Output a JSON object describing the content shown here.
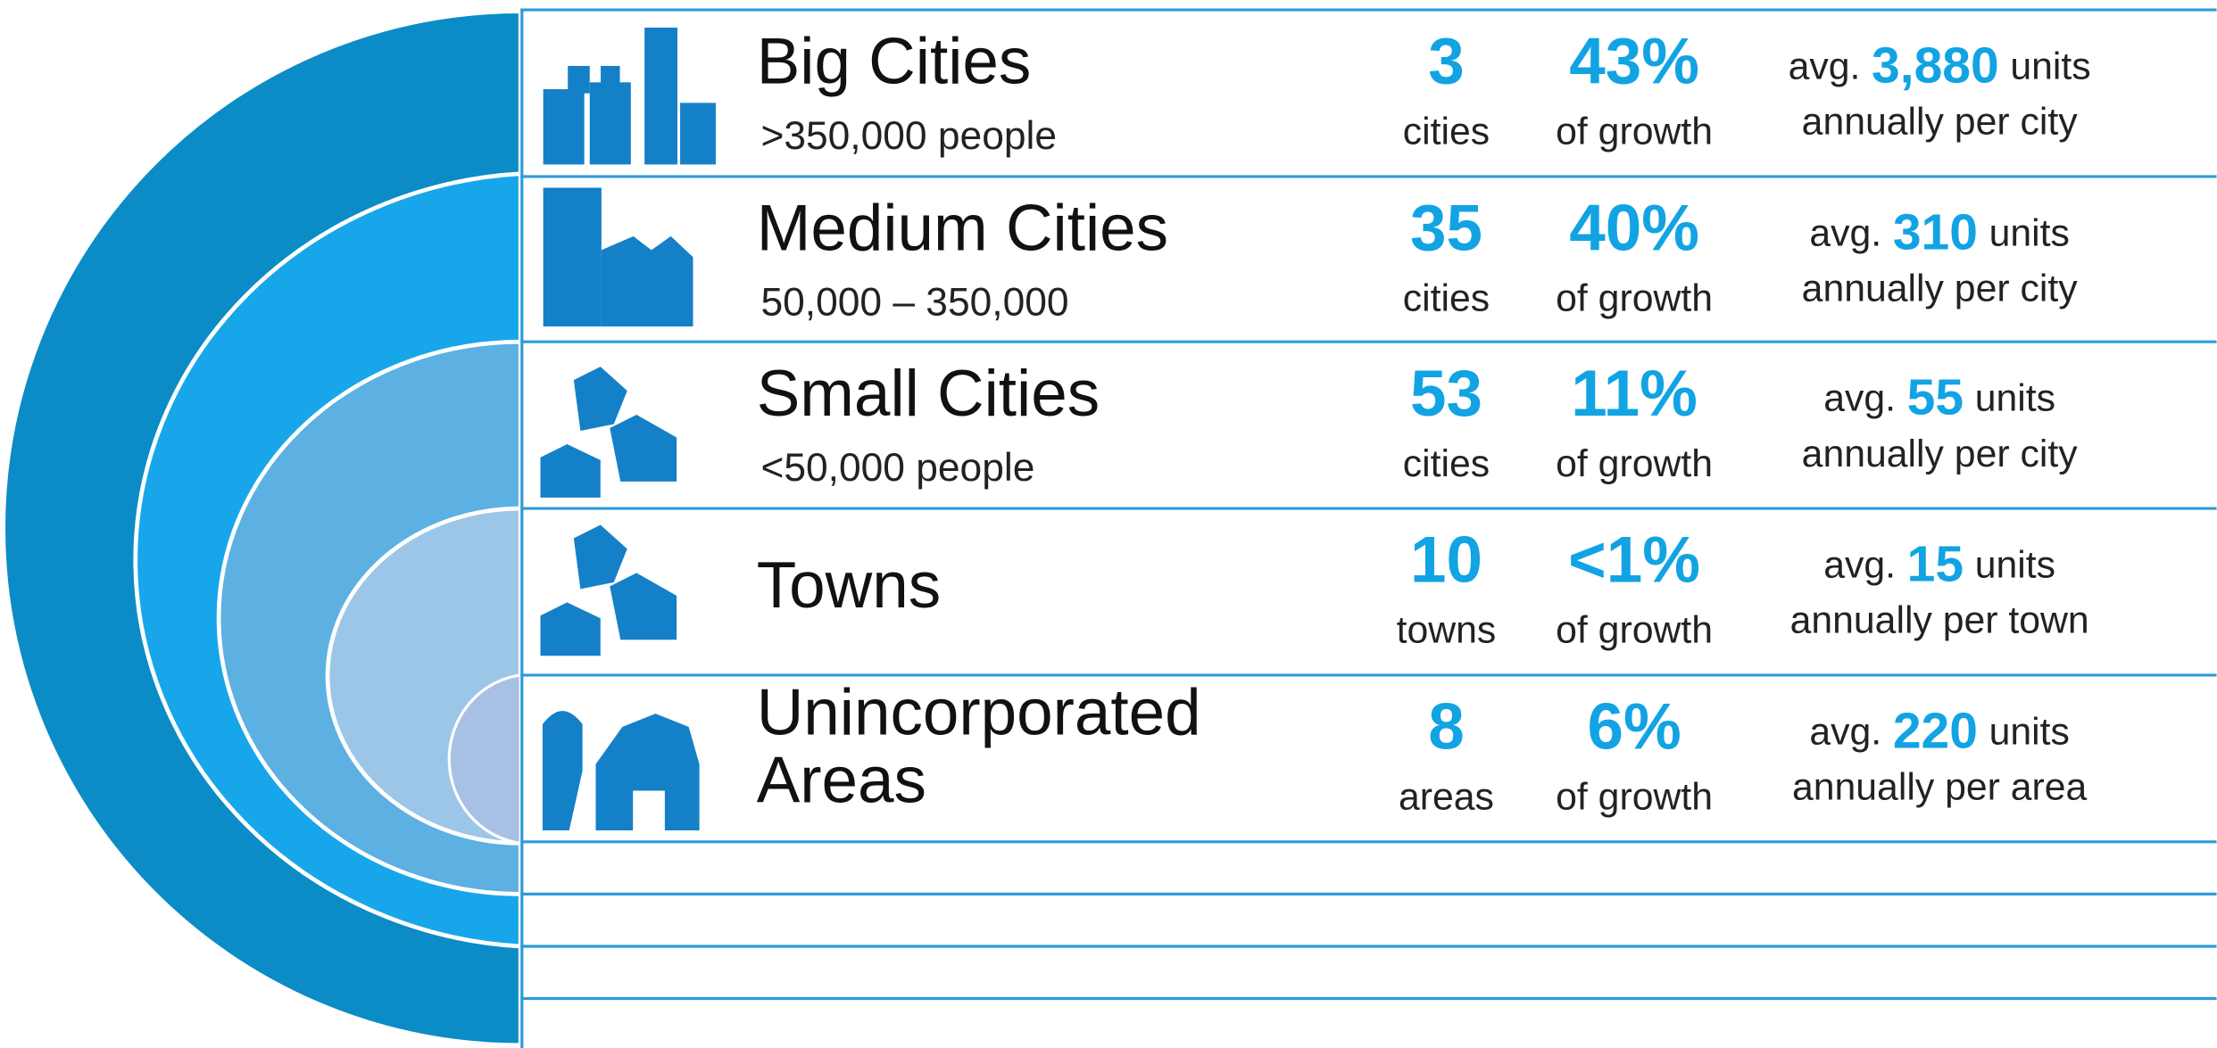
{
  "rows": [
    {
      "title_lines": [
        "Big Cities"
      ],
      "subtitle": ">350,000 people",
      "count": "3",
      "count_label": "cities",
      "percent": "43%",
      "percent_label": "of growth",
      "avg_prefix": "avg.",
      "avg_value": "3,880",
      "avg_unit": "units",
      "avg_suffix": "annually per city"
    },
    {
      "title_lines": [
        "Medium Cities"
      ],
      "subtitle": "50,000 – 350,000",
      "count": "35",
      "count_label": "cities",
      "percent": "40%",
      "percent_label": "of growth",
      "avg_prefix": "avg.",
      "avg_value": "310",
      "avg_unit": "units",
      "avg_suffix": "annually per city"
    },
    {
      "title_lines": [
        "Small Cities"
      ],
      "subtitle": "<50,000 people",
      "count": "53",
      "count_label": "cities",
      "percent": "11%",
      "percent_label": "of growth",
      "avg_prefix": "avg.",
      "avg_value": "55",
      "avg_unit": "units",
      "avg_suffix": "annually per city"
    },
    {
      "title_lines": [
        "Towns"
      ],
      "count": "10",
      "count_label": "towns",
      "percent": "<1%",
      "percent_label": "of growth",
      "avg_prefix": "avg.",
      "avg_value": "15",
      "avg_unit": "units",
      "avg_suffix": "annually per town"
    },
    {
      "title_lines": [
        "Unincorporated",
        "Areas"
      ],
      "count": "8",
      "count_label": "areas",
      "percent": "6%",
      "percent_label": "of growth",
      "avg_prefix": "avg.",
      "avg_value": "220",
      "avg_unit": "units",
      "avg_suffix": "annually per area"
    }
  ]
}
